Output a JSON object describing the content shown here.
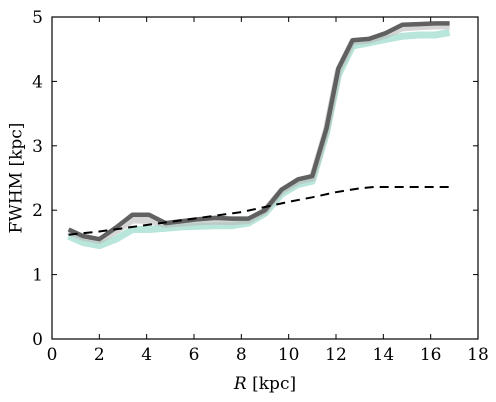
{
  "chart_data": {
    "type": "line",
    "xlabel_italic": "R",
    "xlabel_rest": " [kpc]",
    "ylabel": "FWHM [kpc]",
    "xlim": [
      0,
      18
    ],
    "ylim": [
      0,
      5
    ],
    "xticks": [
      0,
      2,
      4,
      6,
      8,
      10,
      12,
      14,
      16,
      18
    ],
    "yticks": [
      0,
      1,
      2,
      3,
      4,
      5
    ],
    "grid": false,
    "legend": "none",
    "series": [
      {
        "style": "band-teal",
        "color": "#7fd1bd",
        "x": [
          0.7,
          1.3,
          2.0,
          2.7,
          3.4,
          4.1,
          4.8,
          5.5,
          6.2,
          6.9,
          7.6,
          8.3,
          9.0,
          9.7,
          10.4,
          11.0,
          11.6,
          12.1,
          12.7,
          13.4,
          14.1,
          14.8,
          15.5,
          16.2,
          16.8
        ],
        "y": [
          1.6,
          1.5,
          1.45,
          1.55,
          1.7,
          1.7,
          1.72,
          1.74,
          1.75,
          1.76,
          1.76,
          1.8,
          1.95,
          2.25,
          2.4,
          2.45,
          3.2,
          4.1,
          4.55,
          4.6,
          4.65,
          4.7,
          4.72,
          4.72,
          4.76
        ]
      },
      {
        "style": "band-grey",
        "color": "#b9b9b9",
        "x": [
          0.7,
          1.3,
          2.0,
          2.7,
          3.4,
          4.1,
          4.8,
          5.5,
          6.2,
          6.9,
          7.6,
          8.3,
          9.0,
          9.7,
          10.4,
          11.0,
          11.6,
          12.1,
          12.7,
          13.4,
          14.1,
          14.8,
          15.5,
          16.2,
          16.8
        ],
        "y": [
          1.67,
          1.58,
          1.53,
          1.68,
          1.85,
          1.84,
          1.78,
          1.8,
          1.82,
          1.83,
          1.82,
          1.84,
          1.99,
          2.3,
          2.45,
          2.5,
          3.25,
          4.17,
          4.62,
          4.64,
          4.72,
          4.83,
          4.85,
          4.86,
          4.86
        ]
      },
      {
        "style": "main",
        "color": "#5a5a5a",
        "x": [
          0.7,
          1.3,
          2.0,
          2.7,
          3.4,
          4.1,
          4.8,
          5.5,
          6.2,
          6.9,
          7.6,
          8.3,
          9.0,
          9.7,
          10.4,
          11.0,
          11.6,
          12.1,
          12.7,
          13.4,
          14.1,
          14.8,
          15.5,
          16.2,
          16.8
        ],
        "y": [
          1.7,
          1.6,
          1.55,
          1.73,
          1.93,
          1.93,
          1.8,
          1.83,
          1.86,
          1.88,
          1.87,
          1.87,
          2.0,
          2.32,
          2.48,
          2.53,
          3.27,
          4.2,
          4.64,
          4.66,
          4.75,
          4.88,
          4.89,
          4.9,
          4.9
        ]
      },
      {
        "style": "dashed",
        "color": "#000000",
        "x": [
          0.7,
          2.0,
          4.0,
          6.0,
          8.0,
          9.0,
          10.0,
          11.0,
          12.0,
          13.0,
          13.6,
          14.5,
          16.8
        ],
        "y": [
          1.62,
          1.67,
          1.77,
          1.87,
          1.97,
          2.05,
          2.13,
          2.2,
          2.28,
          2.34,
          2.36,
          2.36,
          2.36
        ]
      }
    ]
  }
}
